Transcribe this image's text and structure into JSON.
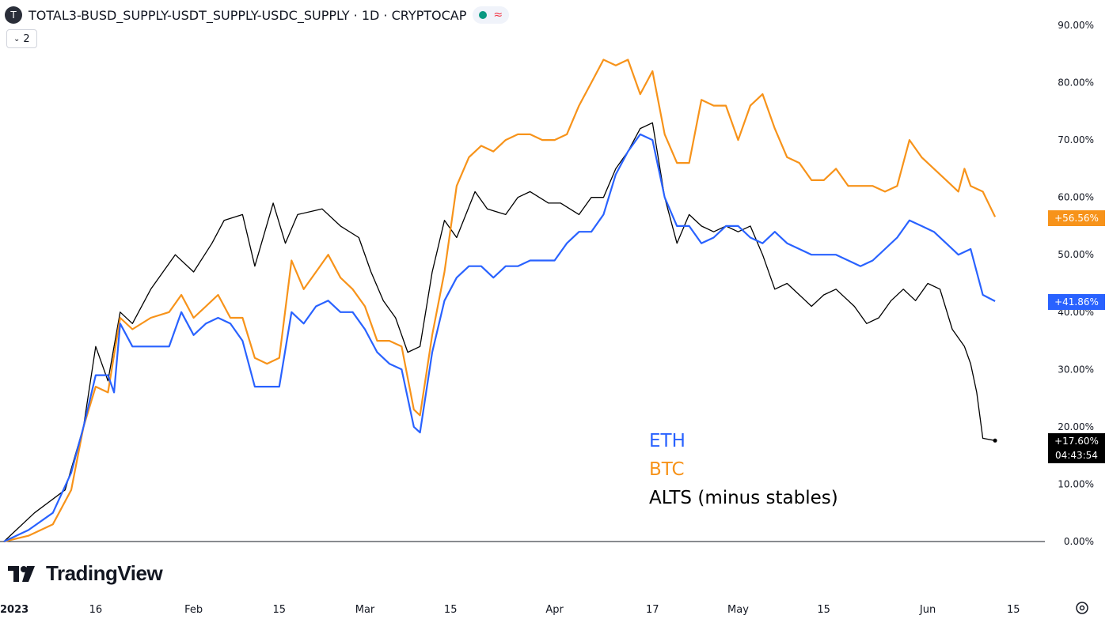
{
  "header": {
    "logo_letter": "T",
    "title": "TOTAL3-BUSD_SUPPLY-USDT_SUPPLY-USDC_SUPPLY · 1D · CRYPTOCAP",
    "wave_symbol": "≈",
    "indicator_count": "2"
  },
  "branding": {
    "name": "TradingView"
  },
  "legend": {
    "eth": "ETH",
    "btc": "BTC",
    "alts": "ALTS (minus stables)"
  },
  "price_tags": {
    "btc": "+56.56%",
    "eth": "+41.86%",
    "alts": "+17.60%",
    "countdown": "04:43:54"
  },
  "colors": {
    "eth": "#2962ff",
    "btc": "#f7931a",
    "alts": "#000000",
    "grid_line": "#e0e3eb"
  },
  "chart_data": {
    "type": "line",
    "title": "TOTAL3-BUSD_SUPPLY-USDT_SUPPLY-USDC_SUPPLY · 1D · CRYPTOCAP",
    "y_unit": "%",
    "y_ticks": [
      "90.00%",
      "80.00%",
      "70.00%",
      "60.00%",
      "50.00%",
      "40.00%",
      "30.00%",
      "20.00%",
      "10.00%",
      "0.00%"
    ],
    "x_tick_labels": [
      "2023",
      "16",
      "Feb",
      "15",
      "Mar",
      "15",
      "Apr",
      "17",
      "May",
      "15",
      "Jun",
      "15"
    ],
    "x_tick_days": [
      0,
      15,
      31,
      45,
      59,
      73,
      90,
      106,
      120,
      134,
      151,
      165
    ],
    "x_range": [
      0,
      166
    ],
    "ylim": [
      0,
      90
    ],
    "series": [
      {
        "name": "ALTS (minus stables)",
        "color": "#000000",
        "points": [
          [
            0,
            0
          ],
          [
            5,
            5
          ],
          [
            10,
            9
          ],
          [
            13,
            20
          ],
          [
            15,
            34
          ],
          [
            17,
            28
          ],
          [
            19,
            40
          ],
          [
            21,
            38
          ],
          [
            24,
            44
          ],
          [
            28,
            50
          ],
          [
            31,
            47
          ],
          [
            34,
            52
          ],
          [
            36,
            56
          ],
          [
            39,
            57
          ],
          [
            41,
            48
          ],
          [
            44,
            59
          ],
          [
            46,
            52
          ],
          [
            48,
            57
          ],
          [
            52,
            58
          ],
          [
            55,
            55
          ],
          [
            58,
            53
          ],
          [
            60,
            47
          ],
          [
            62,
            42
          ],
          [
            64,
            39
          ],
          [
            66,
            33
          ],
          [
            68,
            34
          ],
          [
            70,
            47
          ],
          [
            72,
            56
          ],
          [
            74,
            53
          ],
          [
            77,
            61
          ],
          [
            79,
            58
          ],
          [
            82,
            57
          ],
          [
            84,
            60
          ],
          [
            86,
            61
          ],
          [
            89,
            59
          ],
          [
            91,
            59
          ],
          [
            94,
            57
          ],
          [
            96,
            60
          ],
          [
            98,
            60
          ],
          [
            100,
            65
          ],
          [
            102,
            68
          ],
          [
            104,
            72
          ],
          [
            106,
            73
          ],
          [
            108,
            60
          ],
          [
            110,
            52
          ],
          [
            112,
            57
          ],
          [
            114,
            55
          ],
          [
            116,
            54
          ],
          [
            118,
            55
          ],
          [
            120,
            54
          ],
          [
            122,
            55
          ],
          [
            124,
            50
          ],
          [
            126,
            44
          ],
          [
            128,
            45
          ],
          [
            130,
            43
          ],
          [
            132,
            41
          ],
          [
            134,
            43
          ],
          [
            136,
            44
          ],
          [
            139,
            41
          ],
          [
            141,
            38
          ],
          [
            143,
            39
          ],
          [
            145,
            42
          ],
          [
            147,
            44
          ],
          [
            149,
            42
          ],
          [
            151,
            45
          ],
          [
            153,
            44
          ],
          [
            155,
            37
          ],
          [
            157,
            34
          ],
          [
            158,
            31
          ],
          [
            159,
            26
          ],
          [
            160,
            18
          ],
          [
            162,
            17.6
          ]
        ]
      },
      {
        "name": "BTC",
        "color": "#f7931a",
        "points": [
          [
            0,
            0
          ],
          [
            4,
            1
          ],
          [
            8,
            3
          ],
          [
            11,
            9
          ],
          [
            13,
            20
          ],
          [
            15,
            27
          ],
          [
            17,
            26
          ],
          [
            19,
            39
          ],
          [
            21,
            37
          ],
          [
            24,
            39
          ],
          [
            27,
            40
          ],
          [
            29,
            43
          ],
          [
            31,
            39
          ],
          [
            33,
            41
          ],
          [
            35,
            43
          ],
          [
            37,
            39
          ],
          [
            39,
            39
          ],
          [
            41,
            32
          ],
          [
            43,
            31
          ],
          [
            45,
            32
          ],
          [
            47,
            49
          ],
          [
            49,
            44
          ],
          [
            51,
            47
          ],
          [
            53,
            50
          ],
          [
            55,
            46
          ],
          [
            57,
            44
          ],
          [
            59,
            41
          ],
          [
            61,
            35
          ],
          [
            63,
            35
          ],
          [
            65,
            34
          ],
          [
            67,
            23
          ],
          [
            68,
            22
          ],
          [
            70,
            36
          ],
          [
            72,
            47
          ],
          [
            74,
            62
          ],
          [
            76,
            67
          ],
          [
            78,
            69
          ],
          [
            80,
            68
          ],
          [
            82,
            70
          ],
          [
            84,
            71
          ],
          [
            86,
            71
          ],
          [
            88,
            70
          ],
          [
            90,
            70
          ],
          [
            92,
            71
          ],
          [
            94,
            76
          ],
          [
            96,
            80
          ],
          [
            98,
            84
          ],
          [
            100,
            83
          ],
          [
            102,
            84
          ],
          [
            104,
            78
          ],
          [
            106,
            82
          ],
          [
            108,
            71
          ],
          [
            110,
            66
          ],
          [
            112,
            66
          ],
          [
            114,
            77
          ],
          [
            116,
            76
          ],
          [
            118,
            76
          ],
          [
            120,
            70
          ],
          [
            122,
            76
          ],
          [
            124,
            78
          ],
          [
            126,
            72
          ],
          [
            128,
            67
          ],
          [
            130,
            66
          ],
          [
            132,
            63
          ],
          [
            134,
            63
          ],
          [
            136,
            65
          ],
          [
            138,
            62
          ],
          [
            140,
            62
          ],
          [
            142,
            62
          ],
          [
            144,
            61
          ],
          [
            146,
            62
          ],
          [
            148,
            70
          ],
          [
            150,
            67
          ],
          [
            152,
            65
          ],
          [
            154,
            63
          ],
          [
            156,
            61
          ],
          [
            157,
            65
          ],
          [
            158,
            62
          ],
          [
            160,
            61
          ],
          [
            162,
            56.6
          ]
        ]
      },
      {
        "name": "ETH",
        "color": "#2962ff",
        "points": [
          [
            0,
            0
          ],
          [
            4,
            2
          ],
          [
            8,
            5
          ],
          [
            11,
            12
          ],
          [
            13,
            20
          ],
          [
            15,
            29
          ],
          [
            17,
            29
          ],
          [
            18,
            26
          ],
          [
            19,
            38
          ],
          [
            21,
            34
          ],
          [
            24,
            34
          ],
          [
            27,
            34
          ],
          [
            29,
            40
          ],
          [
            31,
            36
          ],
          [
            33,
            38
          ],
          [
            35,
            39
          ],
          [
            37,
            38
          ],
          [
            39,
            35
          ],
          [
            41,
            27
          ],
          [
            43,
            27
          ],
          [
            45,
            27
          ],
          [
            47,
            40
          ],
          [
            49,
            38
          ],
          [
            51,
            41
          ],
          [
            53,
            42
          ],
          [
            55,
            40
          ],
          [
            57,
            40
          ],
          [
            59,
            37
          ],
          [
            61,
            33
          ],
          [
            63,
            31
          ],
          [
            65,
            30
          ],
          [
            67,
            20
          ],
          [
            68,
            19
          ],
          [
            70,
            33
          ],
          [
            72,
            42
          ],
          [
            74,
            46
          ],
          [
            76,
            48
          ],
          [
            78,
            48
          ],
          [
            80,
            46
          ],
          [
            82,
            48
          ],
          [
            84,
            48
          ],
          [
            86,
            49
          ],
          [
            88,
            49
          ],
          [
            90,
            49
          ],
          [
            92,
            52
          ],
          [
            94,
            54
          ],
          [
            96,
            54
          ],
          [
            98,
            57
          ],
          [
            100,
            64
          ],
          [
            102,
            68
          ],
          [
            104,
            71
          ],
          [
            106,
            70
          ],
          [
            108,
            60
          ],
          [
            110,
            55
          ],
          [
            112,
            55
          ],
          [
            114,
            52
          ],
          [
            116,
            53
          ],
          [
            118,
            55
          ],
          [
            120,
            55
          ],
          [
            122,
            53
          ],
          [
            124,
            52
          ],
          [
            126,
            54
          ],
          [
            128,
            52
          ],
          [
            130,
            51
          ],
          [
            132,
            50
          ],
          [
            134,
            50
          ],
          [
            136,
            50
          ],
          [
            138,
            49
          ],
          [
            140,
            48
          ],
          [
            142,
            49
          ],
          [
            144,
            51
          ],
          [
            146,
            53
          ],
          [
            148,
            56
          ],
          [
            150,
            55
          ],
          [
            152,
            54
          ],
          [
            154,
            52
          ],
          [
            156,
            50
          ],
          [
            158,
            51
          ],
          [
            160,
            43
          ],
          [
            162,
            41.9
          ]
        ]
      }
    ]
  }
}
